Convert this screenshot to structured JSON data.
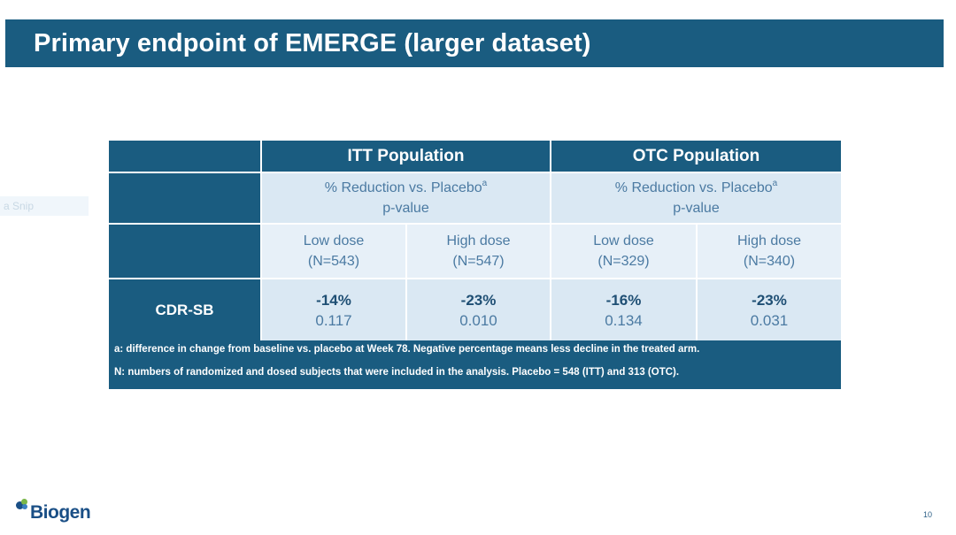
{
  "slide": {
    "title": "Primary endpoint of EMERGE (larger dataset)",
    "page_number": "10"
  },
  "table": {
    "populations": [
      {
        "label": "ITT Population"
      },
      {
        "label": "OTC Population"
      }
    ],
    "metric_header": {
      "line1": "% Reduction vs. Placebo",
      "sup": "a",
      "line2": "p-value"
    },
    "dose_groups": [
      {
        "dose": "Low dose",
        "n": "(N=543)"
      },
      {
        "dose": "High dose",
        "n": "(N=547)"
      },
      {
        "dose": "Low dose",
        "n": "(N=329)"
      },
      {
        "dose": "High dose",
        "n": "(N=340)"
      }
    ],
    "row": {
      "label": "CDR-SB",
      "values": [
        {
          "pct": "-14%",
          "p": "0.117"
        },
        {
          "pct": "-23%",
          "p": "0.010"
        },
        {
          "pct": "-16%",
          "p": "0.134"
        },
        {
          "pct": "-23%",
          "p": "0.031"
        }
      ]
    },
    "footnotes": [
      "a: difference in change from baseline vs. placebo at Week 78. Negative percentage means less decline in the treated arm.",
      "N: numbers of randomized and dosed subjects that were included in the analysis. Placebo = 548 (ITT) and 313 (OTC)."
    ]
  },
  "snip_ghost": "a Snip",
  "logo": {
    "text": "Biogen",
    "mark_colors": [
      "#1a4f86",
      "#7ab648",
      "#3a7fc1"
    ]
  },
  "colors": {
    "header_blue": "#1a5c80",
    "cell_light": "#dae8f3",
    "text_blue": "#4b7aa2"
  }
}
